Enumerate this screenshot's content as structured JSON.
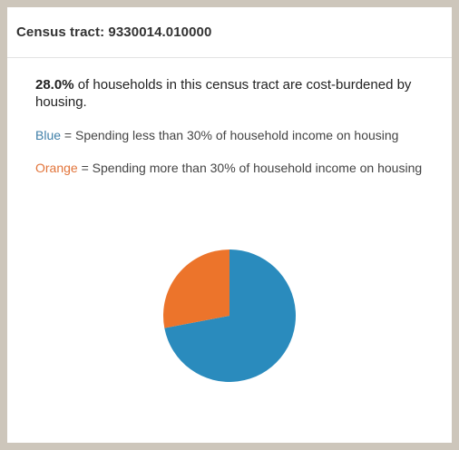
{
  "popup": {
    "title": "Census tract: 9330014.010000"
  },
  "summary": {
    "percent": "28.0%",
    "text": " of households in this census tract are cost-burdened by housing."
  },
  "legend": {
    "blue_label": "Blue",
    "blue_text": " = Spending less than 30% of household income on housing",
    "orange_label": "Orange",
    "orange_text": " = Spending more than 30% of household income on housing"
  },
  "colors": {
    "blue": "#2a8bbd",
    "orange": "#ec742b"
  },
  "chart_data": {
    "type": "pie",
    "slices": [
      {
        "value": 72.0,
        "color": "#2a8bbd"
      },
      {
        "value": 28.0,
        "color": "#ec742b"
      }
    ]
  }
}
